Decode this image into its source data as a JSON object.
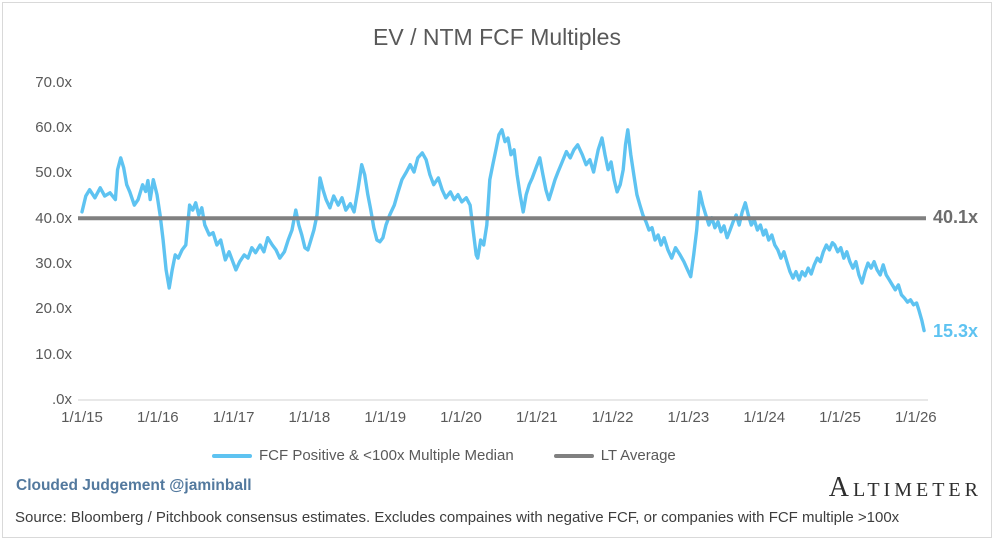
{
  "title": "EV / NTM FCF Multiples",
  "annotations": {
    "lt_average_label": "40.1x",
    "last_value_label": "15.3x"
  },
  "legend": [
    {
      "name": "fcf-median",
      "label": "FCF Positive & <100x Multiple Median",
      "color": "#5ec3f1"
    },
    {
      "name": "lt-average",
      "label": "LT Average",
      "color": "#808080"
    }
  ],
  "footer": {
    "byline": "Clouded Judgement @jaminball",
    "source": "Source: Bloomberg / Pitchbook consensus estimates. Excludes compaines with negative FCF, or companies with FCF multiple >100x",
    "logo": "Altimeter"
  },
  "colors": {
    "series_blue": "#5ec3f1",
    "lt_average_gray": "#808080",
    "axis_text": "#595959",
    "axis_line": "#d9d9d9"
  },
  "chart_data": {
    "type": "line",
    "title": "EV / NTM FCF Multiples",
    "grid": false,
    "legend_position": "bottom",
    "x_axis": {
      "ticks": [
        "1/1/15",
        "1/1/16",
        "1/1/17",
        "1/1/18",
        "1/1/19",
        "1/1/20",
        "1/1/21",
        "1/1/22",
        "1/1/23",
        "1/1/24",
        "1/1/25",
        "1/1/26"
      ],
      "tick_values": [
        2015,
        2016,
        2017,
        2018,
        2019,
        2020,
        2021,
        2022,
        2023,
        2024,
        2025,
        2026
      ],
      "range_years": [
        2015.0,
        2026.15
      ]
    },
    "y_axis": {
      "ticks": [
        ".0x",
        "10.0x",
        "20.0x",
        "30.0x",
        "40.0x",
        "50.0x",
        "60.0x",
        "70.0x"
      ],
      "tick_values": [
        0,
        10,
        20,
        30,
        40,
        50,
        60,
        70
      ],
      "ylim": [
        0,
        74
      ]
    },
    "lt_average": 40.1,
    "last_value": 15.3,
    "series": [
      {
        "name": "FCF Positive & <100x Multiple Median",
        "color": "#5ec3f1",
        "points": [
          [
            2015.0,
            41.5
          ],
          [
            2015.05,
            45.0
          ],
          [
            2015.1,
            46.4
          ],
          [
            2015.17,
            44.6
          ],
          [
            2015.24,
            46.8
          ],
          [
            2015.3,
            45.0
          ],
          [
            2015.37,
            45.7
          ],
          [
            2015.44,
            44.2
          ],
          [
            2015.47,
            50.8
          ],
          [
            2015.51,
            53.4
          ],
          [
            2015.55,
            51.2
          ],
          [
            2015.59,
            47.5
          ],
          [
            2015.63,
            45.9
          ],
          [
            2015.69,
            43.0
          ],
          [
            2015.74,
            44.2
          ],
          [
            2015.8,
            47.5
          ],
          [
            2015.84,
            46.0
          ],
          [
            2015.87,
            48.4
          ],
          [
            2015.9,
            44.2
          ],
          [
            2015.94,
            48.6
          ],
          [
            2015.99,
            45.3
          ],
          [
            2016.03,
            40.8
          ],
          [
            2016.07,
            35.3
          ],
          [
            2016.11,
            28.7
          ],
          [
            2016.15,
            24.7
          ],
          [
            2016.19,
            28.7
          ],
          [
            2016.23,
            32.0
          ],
          [
            2016.27,
            31.3
          ],
          [
            2016.32,
            33.1
          ],
          [
            2016.37,
            34.2
          ],
          [
            2016.42,
            43.0
          ],
          [
            2016.46,
            41.9
          ],
          [
            2016.5,
            43.5
          ],
          [
            2016.54,
            40.8
          ],
          [
            2016.58,
            42.4
          ],
          [
            2016.62,
            38.6
          ],
          [
            2016.68,
            36.4
          ],
          [
            2016.73,
            36.9
          ],
          [
            2016.78,
            34.2
          ],
          [
            2016.83,
            35.3
          ],
          [
            2016.89,
            30.9
          ],
          [
            2016.94,
            32.7
          ],
          [
            2016.99,
            30.5
          ],
          [
            2017.03,
            28.7
          ],
          [
            2017.08,
            30.5
          ],
          [
            2017.14,
            32.0
          ],
          [
            2017.19,
            31.3
          ],
          [
            2017.24,
            33.6
          ],
          [
            2017.29,
            32.5
          ],
          [
            2017.35,
            34.2
          ],
          [
            2017.4,
            32.7
          ],
          [
            2017.45,
            35.8
          ],
          [
            2017.51,
            34.2
          ],
          [
            2017.56,
            33.1
          ],
          [
            2017.61,
            31.3
          ],
          [
            2017.67,
            32.7
          ],
          [
            2017.72,
            35.3
          ],
          [
            2017.77,
            37.5
          ],
          [
            2017.82,
            41.9
          ],
          [
            2017.86,
            38.6
          ],
          [
            2017.9,
            36.4
          ],
          [
            2017.94,
            33.6
          ],
          [
            2017.98,
            33.1
          ],
          [
            2018.02,
            35.3
          ],
          [
            2018.06,
            37.5
          ],
          [
            2018.1,
            40.8
          ],
          [
            2018.14,
            49.0
          ],
          [
            2018.18,
            46.4
          ],
          [
            2018.22,
            44.2
          ],
          [
            2018.27,
            42.4
          ],
          [
            2018.32,
            45.0
          ],
          [
            2018.38,
            43.0
          ],
          [
            2018.43,
            44.6
          ],
          [
            2018.48,
            41.9
          ],
          [
            2018.54,
            43.3
          ],
          [
            2018.59,
            41.5
          ],
          [
            2018.64,
            46.4
          ],
          [
            2018.69,
            51.9
          ],
          [
            2018.73,
            49.7
          ],
          [
            2018.77,
            45.3
          ],
          [
            2018.81,
            41.9
          ],
          [
            2018.85,
            38.0
          ],
          [
            2018.89,
            35.3
          ],
          [
            2018.93,
            34.9
          ],
          [
            2018.97,
            35.8
          ],
          [
            2019.01,
            38.6
          ],
          [
            2019.06,
            40.8
          ],
          [
            2019.12,
            43.0
          ],
          [
            2019.17,
            45.9
          ],
          [
            2019.22,
            48.6
          ],
          [
            2019.28,
            50.3
          ],
          [
            2019.33,
            51.9
          ],
          [
            2019.38,
            50.3
          ],
          [
            2019.43,
            53.4
          ],
          [
            2019.49,
            54.5
          ],
          [
            2019.54,
            53.0
          ],
          [
            2019.59,
            49.7
          ],
          [
            2019.64,
            47.5
          ],
          [
            2019.7,
            49.0
          ],
          [
            2019.75,
            46.4
          ],
          [
            2019.8,
            44.6
          ],
          [
            2019.86,
            45.9
          ],
          [
            2019.91,
            44.2
          ],
          [
            2019.96,
            45.3
          ],
          [
            2020.01,
            43.7
          ],
          [
            2020.07,
            44.6
          ],
          [
            2020.12,
            43.0
          ],
          [
            2020.16,
            37.5
          ],
          [
            2020.2,
            32.0
          ],
          [
            2020.22,
            31.3
          ],
          [
            2020.26,
            35.3
          ],
          [
            2020.3,
            34.2
          ],
          [
            2020.34,
            38.6
          ],
          [
            2020.38,
            48.6
          ],
          [
            2020.42,
            51.9
          ],
          [
            2020.46,
            55.2
          ],
          [
            2020.5,
            58.5
          ],
          [
            2020.54,
            59.6
          ],
          [
            2020.58,
            57.0
          ],
          [
            2020.62,
            57.8
          ],
          [
            2020.66,
            54.1
          ],
          [
            2020.7,
            55.2
          ],
          [
            2020.74,
            49.7
          ],
          [
            2020.78,
            45.3
          ],
          [
            2020.82,
            41.5
          ],
          [
            2020.86,
            45.3
          ],
          [
            2020.9,
            47.5
          ],
          [
            2020.94,
            49.0
          ],
          [
            2020.99,
            51.2
          ],
          [
            2021.04,
            53.4
          ],
          [
            2021.08,
            49.7
          ],
          [
            2021.12,
            46.4
          ],
          [
            2021.16,
            44.2
          ],
          [
            2021.2,
            46.4
          ],
          [
            2021.24,
            48.6
          ],
          [
            2021.28,
            50.3
          ],
          [
            2021.33,
            52.3
          ],
          [
            2021.39,
            54.8
          ],
          [
            2021.44,
            53.4
          ],
          [
            2021.49,
            55.2
          ],
          [
            2021.54,
            56.3
          ],
          [
            2021.6,
            54.1
          ],
          [
            2021.65,
            51.9
          ],
          [
            2021.7,
            53.0
          ],
          [
            2021.75,
            50.3
          ],
          [
            2021.81,
            55.2
          ],
          [
            2021.86,
            57.8
          ],
          [
            2021.9,
            54.1
          ],
          [
            2021.94,
            50.8
          ],
          [
            2021.98,
            52.5
          ],
          [
            2022.02,
            48.6
          ],
          [
            2022.06,
            45.9
          ],
          [
            2022.1,
            47.5
          ],
          [
            2022.14,
            50.8
          ],
          [
            2022.17,
            56.3
          ],
          [
            2022.2,
            59.6
          ],
          [
            2022.24,
            54.1
          ],
          [
            2022.28,
            49.7
          ],
          [
            2022.32,
            45.3
          ],
          [
            2022.36,
            43.0
          ],
          [
            2022.4,
            40.8
          ],
          [
            2022.44,
            39.3
          ],
          [
            2022.48,
            37.5
          ],
          [
            2022.52,
            38.0
          ],
          [
            2022.56,
            35.3
          ],
          [
            2022.6,
            36.4
          ],
          [
            2022.64,
            34.2
          ],
          [
            2022.68,
            35.8
          ],
          [
            2022.73,
            33.1
          ],
          [
            2022.78,
            31.3
          ],
          [
            2022.83,
            33.6
          ],
          [
            2022.89,
            32.0
          ],
          [
            2022.94,
            30.5
          ],
          [
            2022.99,
            28.7
          ],
          [
            2023.03,
            27.2
          ],
          [
            2023.07,
            32.0
          ],
          [
            2023.11,
            37.5
          ],
          [
            2023.15,
            45.9
          ],
          [
            2023.19,
            43.0
          ],
          [
            2023.23,
            40.8
          ],
          [
            2023.27,
            38.6
          ],
          [
            2023.31,
            40.2
          ],
          [
            2023.35,
            38.0
          ],
          [
            2023.39,
            39.3
          ],
          [
            2023.43,
            37.1
          ],
          [
            2023.47,
            38.4
          ],
          [
            2023.51,
            35.8
          ],
          [
            2023.55,
            37.5
          ],
          [
            2023.59,
            39.3
          ],
          [
            2023.63,
            40.8
          ],
          [
            2023.67,
            38.6
          ],
          [
            2023.71,
            41.5
          ],
          [
            2023.75,
            43.5
          ],
          [
            2023.79,
            40.8
          ],
          [
            2023.83,
            38.6
          ],
          [
            2023.87,
            39.7
          ],
          [
            2023.91,
            37.5
          ],
          [
            2023.95,
            38.6
          ],
          [
            2023.99,
            36.4
          ],
          [
            2024.02,
            37.5
          ],
          [
            2024.06,
            35.3
          ],
          [
            2024.1,
            36.4
          ],
          [
            2024.14,
            34.2
          ],
          [
            2024.18,
            33.1
          ],
          [
            2024.22,
            31.3
          ],
          [
            2024.26,
            32.7
          ],
          [
            2024.3,
            30.5
          ],
          [
            2024.34,
            28.3
          ],
          [
            2024.38,
            26.9
          ],
          [
            2024.42,
            28.3
          ],
          [
            2024.46,
            26.5
          ],
          [
            2024.5,
            28.3
          ],
          [
            2024.54,
            27.4
          ],
          [
            2024.58,
            29.1
          ],
          [
            2024.62,
            27.8
          ],
          [
            2024.66,
            29.8
          ],
          [
            2024.7,
            31.3
          ],
          [
            2024.74,
            30.5
          ],
          [
            2024.78,
            32.7
          ],
          [
            2024.82,
            34.2
          ],
          [
            2024.86,
            33.1
          ],
          [
            2024.9,
            34.7
          ],
          [
            2024.93,
            34.2
          ],
          [
            2024.97,
            32.7
          ],
          [
            2025.01,
            33.6
          ],
          [
            2025.05,
            31.3
          ],
          [
            2025.09,
            32.7
          ],
          [
            2025.13,
            30.5
          ],
          [
            2025.17,
            29.1
          ],
          [
            2025.21,
            30.5
          ],
          [
            2025.25,
            27.6
          ],
          [
            2025.29,
            25.8
          ],
          [
            2025.33,
            28.3
          ],
          [
            2025.37,
            30.2
          ],
          [
            2025.41,
            29.1
          ],
          [
            2025.45,
            30.5
          ],
          [
            2025.49,
            28.7
          ],
          [
            2025.53,
            27.6
          ],
          [
            2025.57,
            29.8
          ],
          [
            2025.61,
            27.6
          ],
          [
            2025.65,
            26.5
          ],
          [
            2025.69,
            25.4
          ],
          [
            2025.73,
            24.3
          ],
          [
            2025.77,
            25.4
          ],
          [
            2025.81,
            23.2
          ],
          [
            2025.85,
            22.5
          ],
          [
            2025.89,
            21.6
          ],
          [
            2025.93,
            22.1
          ],
          [
            2025.97,
            21.0
          ],
          [
            2026.01,
            21.4
          ],
          [
            2026.04,
            19.9
          ],
          [
            2026.08,
            17.5
          ],
          [
            2026.11,
            15.3
          ]
        ]
      },
      {
        "name": "LT Average",
        "color": "#808080",
        "value": 40.1
      }
    ]
  }
}
